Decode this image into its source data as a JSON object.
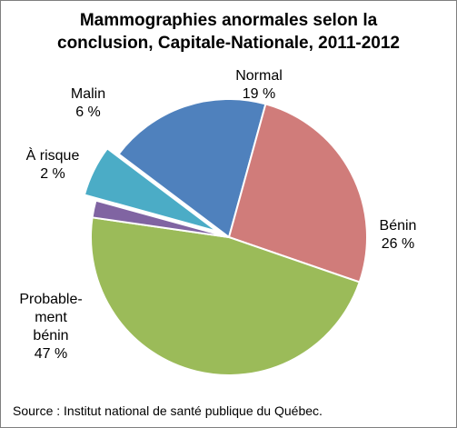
{
  "chart_data": {
    "type": "pie",
    "title_lines": [
      "Mammographies anormales selon la",
      "conclusion, Capitale-Nationale, 2011-2012"
    ],
    "slices": [
      {
        "label": "Normal",
        "value": 19,
        "value_label": "19 %",
        "color": "#4F81BD",
        "exploded": false
      },
      {
        "label": "Bénin",
        "value": 26,
        "value_label": "26 %",
        "color": "#D07C7A",
        "exploded": false
      },
      {
        "label": "Probable-ment bénin",
        "label_lines": [
          "Probable-",
          "ment",
          "bénin"
        ],
        "value": 47,
        "value_label": "47 %",
        "color": "#9BBB59",
        "exploded": false
      },
      {
        "label": "À risque",
        "value": 2,
        "value_label": "2 %",
        "color": "#8064A2",
        "exploded": false
      },
      {
        "label": "Malin",
        "value": 6,
        "value_label": "6 %",
        "color": "#4BACC6",
        "exploded": true
      }
    ],
    "source": "Source : Institut national de santé publique du Québec."
  }
}
